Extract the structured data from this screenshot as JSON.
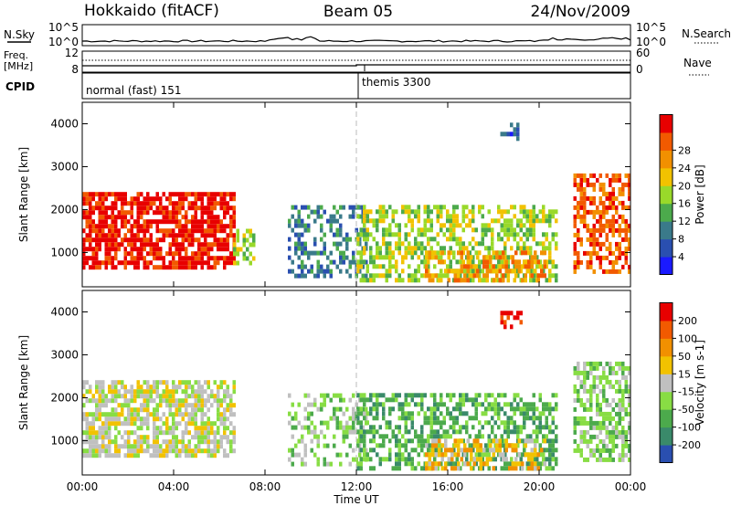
{
  "header": {
    "radar": "Hokkaido (fitACF)",
    "beam": "Beam 05",
    "date": "24/Nov/2009"
  },
  "top_panels": {
    "nsky_label": "N.Sky",
    "nsky_ticks": [
      "10^5",
      "10^0"
    ],
    "nsearch_label": "N.Search",
    "nsearch_ticks": [
      "10^5",
      "10^0"
    ],
    "freq_label": "Freq.",
    "freq_unit": "[MHz]",
    "freq_ticks": [
      "12",
      "8"
    ],
    "nave_label": "Nave",
    "nave_ticks": [
      "60",
      "0"
    ],
    "cpid_label": "CPID",
    "cpid_programs": [
      "normal (fast) 151",
      "themis 3300"
    ]
  },
  "chart_data": [
    {
      "type": "heatmap",
      "title": "",
      "xlabel": "Time UT",
      "ylabel": "Slant Range [km]",
      "x_ticks": [
        "00:00",
        "04:00",
        "08:00",
        "12:00",
        "16:00",
        "20:00",
        "00:00"
      ],
      "y_ticks": [
        1000,
        2000,
        3000,
        4000
      ],
      "ylim": [
        200,
        4500
      ],
      "colorbar_label": "Power [dB]",
      "colorbar_ticks": [
        4,
        8,
        12,
        16,
        20,
        24,
        28
      ],
      "colors": [
        "#1a1aff",
        "#2a4fb0",
        "#3a7a8a",
        "#4caa4c",
        "#99d92a",
        "#f2c200",
        "#f29000",
        "#f25a00",
        "#e80000"
      ],
      "regions": [
        {
          "t": [
            0.0,
            6.6
          ],
          "r": [
            600,
            2350
          ],
          "level": 8,
          "density": 0.75
        },
        {
          "t": [
            6.6,
            7.5
          ],
          "r": [
            700,
            1500
          ],
          "level": 4,
          "density": 0.5
        },
        {
          "t": [
            9.0,
            12.5
          ],
          "r": [
            400,
            2100
          ],
          "level": 2,
          "density": 0.45
        },
        {
          "t": [
            12.0,
            20.8
          ],
          "r": [
            300,
            2100
          ],
          "level": 4,
          "density": 0.55
        },
        {
          "t": [
            15.0,
            20.2
          ],
          "r": [
            300,
            1000
          ],
          "level": 6,
          "density": 0.45
        },
        {
          "t": [
            21.5,
            24.0
          ],
          "r": [
            500,
            2800
          ],
          "level": 7,
          "density": 0.6
        },
        {
          "t": [
            18.3,
            19.2
          ],
          "r": [
            3600,
            4000
          ],
          "level": 1,
          "density": 0.5
        }
      ]
    },
    {
      "type": "heatmap",
      "title": "",
      "xlabel": "Time UT",
      "ylabel": "Slant Range [km]",
      "x_ticks": [
        "00:00",
        "04:00",
        "08:00",
        "12:00",
        "16:00",
        "20:00",
        "00:00"
      ],
      "y_ticks": [
        1000,
        2000,
        3000,
        4000
      ],
      "ylim": [
        200,
        4500
      ],
      "colorbar_label": "Velocity [m s-1]",
      "colorbar_ticks": [
        200,
        100,
        50,
        15,
        -15,
        -50,
        -100,
        -200
      ],
      "colors": [
        "#2a4fb0",
        "#3a8a6a",
        "#4caa4c",
        "#88dd44",
        "#c0c0c0",
        "#f2c200",
        "#f29000",
        "#f25a00",
        "#e80000"
      ],
      "regions": [
        {
          "t": [
            0.0,
            6.6
          ],
          "r": [
            600,
            2350
          ],
          "level": 4,
          "density": 0.7
        },
        {
          "t": [
            9.0,
            12.5
          ],
          "r": [
            400,
            2100
          ],
          "level": 3,
          "density": 0.4
        },
        {
          "t": [
            12.0,
            20.8
          ],
          "r": [
            300,
            2100
          ],
          "level": 2,
          "density": 0.55
        },
        {
          "t": [
            15.0,
            20.2
          ],
          "r": [
            300,
            1000
          ],
          "level": 5,
          "density": 0.4
        },
        {
          "t": [
            21.5,
            24.0
          ],
          "r": [
            500,
            2800
          ],
          "level": 3,
          "density": 0.6
        },
        {
          "t": [
            18.3,
            19.2
          ],
          "r": [
            3600,
            4000
          ],
          "level": 8,
          "density": 0.5
        }
      ]
    }
  ]
}
